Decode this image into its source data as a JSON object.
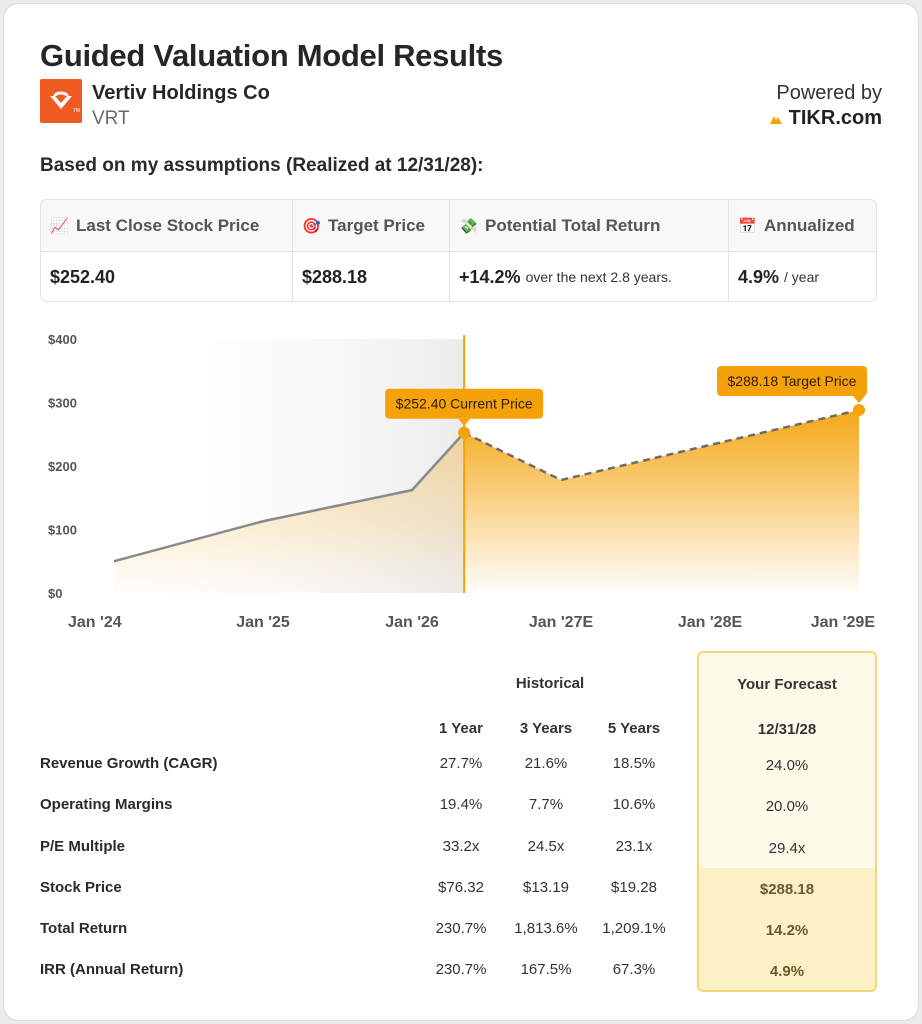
{
  "header": {
    "title": "Guided Valuation Model Results",
    "company": "Vertiv Holdings Co",
    "ticker": "VRT",
    "powered_by": "Powered by",
    "brand": "TIKR.com",
    "assumptions": "Based on my assumptions (Realized at 12/31/28):"
  },
  "summary": [
    {
      "icon": "chart-increasing-icon",
      "label": "Last Close Stock Price",
      "value": "$252.40",
      "sub": ""
    },
    {
      "icon": "target-icon",
      "label": "Target Price",
      "value": "$288.18",
      "sub": ""
    },
    {
      "icon": "money-wings-icon",
      "label": "Potential Total Return",
      "value": "+14.2%",
      "sub": "over the next 2.8 years."
    },
    {
      "icon": "calendar-icon",
      "label": "Annualized",
      "value": "4.9%",
      "sub": "/ year"
    }
  ],
  "chart_data": {
    "type": "area",
    "y_ticks": [
      "$0",
      "$100",
      "$200",
      "$300",
      "$400"
    ],
    "ylim": [
      0,
      400
    ],
    "x_ticks": [
      "Jan '24",
      "Jan '25",
      "Jan '26",
      "Jan '27E",
      "Jan '28E",
      "Jan '29E"
    ],
    "xlim": [
      2024.0,
      2029.0
    ],
    "historical": [
      {
        "x": 2024.0,
        "y": 50
      },
      {
        "x": 2025.0,
        "y": 113
      },
      {
        "x": 2026.0,
        "y": 162
      },
      {
        "x": 2026.35,
        "y": 252.4
      }
    ],
    "forecast": [
      {
        "x": 2026.35,
        "y": 252.4
      },
      {
        "x": 2027.0,
        "y": 178
      },
      {
        "x": 2029.0,
        "y": 288.18
      }
    ],
    "current_label": "$252.40 Current Price",
    "target_label": "$288.18 Target Price",
    "colors": {
      "accent": "#f5a20a",
      "line": "#8a8a8a",
      "dash": "#6c6c6c"
    }
  },
  "table": {
    "historical_label": "Historical",
    "forecast_label": "Your Forecast",
    "columns": [
      "1 Year",
      "3 Years",
      "5 Years"
    ],
    "forecast_date": "12/31/28",
    "rows": [
      {
        "label": "Revenue Growth (CAGR)",
        "values": [
          "27.7%",
          "21.6%",
          "18.5%"
        ],
        "forecast": "24.0%"
      },
      {
        "label": "Operating Margins",
        "values": [
          "19.4%",
          "7.7%",
          "10.6%"
        ],
        "forecast": "20.0%"
      },
      {
        "label": "P/E Multiple",
        "values": [
          "33.2x",
          "24.5x",
          "23.1x"
        ],
        "forecast": "29.4x"
      },
      {
        "label": "Stock Price",
        "values": [
          "$76.32",
          "$13.19",
          "$19.28"
        ],
        "forecast": "$288.18"
      },
      {
        "label": "Total Return",
        "values": [
          "230.7%",
          "1,813.6%",
          "1,209.1%"
        ],
        "forecast": "14.2%"
      },
      {
        "label": "IRR (Annual Return)",
        "values": [
          "230.7%",
          "167.5%",
          "67.3%"
        ],
        "forecast": "4.9%"
      }
    ]
  }
}
